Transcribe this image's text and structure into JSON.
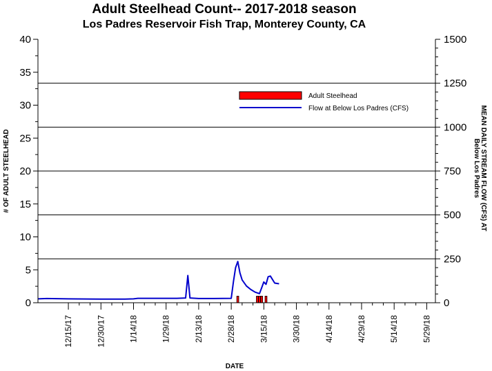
{
  "chart_data": {
    "type": "bar",
    "title": "Adult Steelhead Count-- 2017-2018 season",
    "subtitle": "Los Padres Reservoir Fish Trap, Monterey County, CA",
    "xlabel": "DATE",
    "ylabel": "# OF ADULT STEELHEAD",
    "y2label_line1": "MEAN DAILY STREAM FLOW (CFS) AT",
    "y2label_line2": "Below Los Padres",
    "ylim": [
      0,
      40
    ],
    "y2lim": [
      0,
      1500
    ],
    "xlim": [
      "2017-12-01",
      "2018-06-02"
    ],
    "yticks": [
      "0",
      "5",
      "10",
      "15",
      "20",
      "25",
      "30",
      "35",
      "40"
    ],
    "y2ticks": [
      "0",
      "250",
      "500",
      "750",
      "1000",
      "1250",
      "1500"
    ],
    "xticks": [
      "12/15/17",
      "12/30/17",
      "1/14/18",
      "1/29/18",
      "2/13/18",
      "2/28/18",
      "3/15/18",
      "3/30/18",
      "4/14/18",
      "4/29/18",
      "5/14/18",
      "5/29/18"
    ],
    "grid": "horizontal",
    "legend_position": "top-right",
    "series": [
      {
        "name": "Adult Steelhead",
        "type": "bar",
        "color": "#ff0000",
        "points": [
          {
            "x": "2018-03-03",
            "y": 1
          },
          {
            "x": "2018-03-12",
            "y": 1
          },
          {
            "x": "2018-03-13",
            "y": 1
          },
          {
            "x": "2018-03-14",
            "y": 1
          },
          {
            "x": "2018-03-16",
            "y": 1
          }
        ]
      },
      {
        "name": "Flow at Below Los Padres (CFS)",
        "type": "line",
        "axis": "right",
        "color": "#0000cc",
        "points": [
          {
            "x": "2017-12-01",
            "y": 22
          },
          {
            "x": "2017-12-05",
            "y": 24
          },
          {
            "x": "2017-12-15",
            "y": 22
          },
          {
            "x": "2017-12-30",
            "y": 21
          },
          {
            "x": "2018-01-10",
            "y": 21
          },
          {
            "x": "2018-01-14",
            "y": 22
          },
          {
            "x": "2018-01-16",
            "y": 25
          },
          {
            "x": "2018-01-29",
            "y": 25
          },
          {
            "x": "2018-02-03",
            "y": 25
          },
          {
            "x": "2018-02-07",
            "y": 27
          },
          {
            "x": "2018-02-08",
            "y": 155
          },
          {
            "x": "2018-02-09",
            "y": 27
          },
          {
            "x": "2018-02-13",
            "y": 24
          },
          {
            "x": "2018-02-20",
            "y": 24
          },
          {
            "x": "2018-02-28",
            "y": 25
          },
          {
            "x": "2018-03-01",
            "y": 120
          },
          {
            "x": "2018-03-02",
            "y": 200
          },
          {
            "x": "2018-03-03",
            "y": 235
          },
          {
            "x": "2018-03-04",
            "y": 170
          },
          {
            "x": "2018-03-05",
            "y": 130
          },
          {
            "x": "2018-03-07",
            "y": 95
          },
          {
            "x": "2018-03-09",
            "y": 75
          },
          {
            "x": "2018-03-11",
            "y": 60
          },
          {
            "x": "2018-03-13",
            "y": 52
          },
          {
            "x": "2018-03-14",
            "y": 85
          },
          {
            "x": "2018-03-15",
            "y": 118
          },
          {
            "x": "2018-03-16",
            "y": 105
          },
          {
            "x": "2018-03-17",
            "y": 148
          },
          {
            "x": "2018-03-18",
            "y": 152
          },
          {
            "x": "2018-03-20",
            "y": 112
          },
          {
            "x": "2018-03-22",
            "y": 108
          }
        ]
      }
    ]
  }
}
